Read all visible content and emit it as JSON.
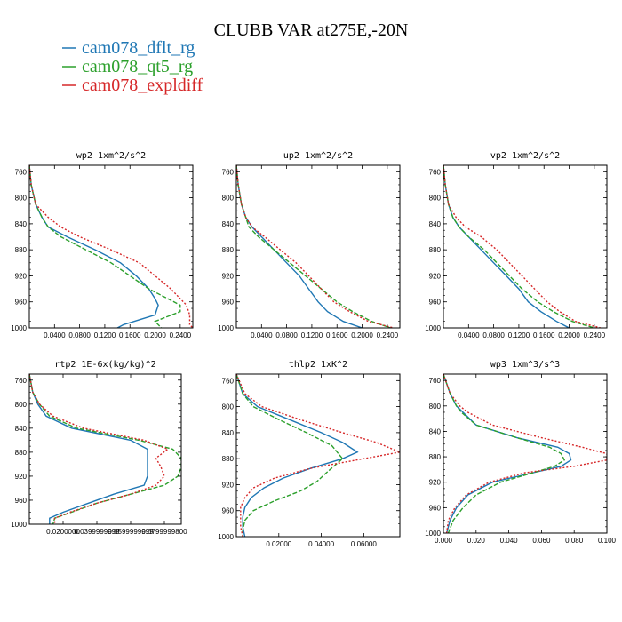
{
  "title": "CLUBB VAR at275E,-20N",
  "legend": [
    {
      "name": "cam078_dflt_rg",
      "color": "#1f77b4",
      "dash": "solid"
    },
    {
      "name": "cam078_qt5_rg",
      "color": "#2ca02c",
      "dash": "dash"
    },
    {
      "name": "cam078_expldiff",
      "color": "#d62728",
      "dash": "dot"
    }
  ],
  "chart_data": [
    {
      "type": "line",
      "title": "wp2  1xm^2/s^2",
      "xlabel": "",
      "ylabel": "",
      "xlim": [
        0,
        0.26
      ],
      "ylim": [
        1000,
        750
      ],
      "ylog": false,
      "xticks": [
        0.04,
        0.08,
        0.12,
        0.16,
        0.2,
        0.24
      ],
      "xtick_labels": [
        "0.0400",
        "0.0800",
        "0.1200",
        "0.1600",
        "0.2000",
        "0.2400"
      ],
      "yticks": [
        760,
        800,
        840,
        880,
        920,
        960,
        1000
      ],
      "series": [
        {
          "name": "cam078_dflt_rg",
          "y": [
            750,
            780,
            810,
            830,
            845,
            860,
            880,
            900,
            920,
            940,
            955,
            965,
            980,
            995,
            1000
          ],
          "x": [
            0.0,
            0.003,
            0.01,
            0.02,
            0.03,
            0.06,
            0.105,
            0.145,
            0.17,
            0.19,
            0.2,
            0.205,
            0.2,
            0.15,
            0.14
          ]
        },
        {
          "name": "cam078_qt5_rg",
          "y": [
            750,
            780,
            810,
            830,
            845,
            860,
            880,
            900,
            920,
            940,
            955,
            965,
            975,
            990,
            1000
          ],
          "x": [
            0.0,
            0.003,
            0.01,
            0.02,
            0.03,
            0.05,
            0.09,
            0.13,
            0.16,
            0.19,
            0.22,
            0.24,
            0.24,
            0.2,
            0.21
          ]
        },
        {
          "name": "cam078_expldiff",
          "y": [
            750,
            780,
            810,
            830,
            845,
            860,
            880,
            900,
            920,
            940,
            955,
            965,
            980,
            995,
            1000
          ],
          "x": [
            0.0,
            0.003,
            0.01,
            0.03,
            0.05,
            0.08,
            0.13,
            0.175,
            0.2,
            0.225,
            0.24,
            0.25,
            0.255,
            0.255,
            0.26
          ]
        }
      ]
    },
    {
      "type": "line",
      "title": "up2  1xm^2/s^2",
      "xlabel": "",
      "ylabel": "",
      "xlim": [
        0,
        0.26
      ],
      "ylim": [
        1000,
        750
      ],
      "ylog": false,
      "xticks": [
        0.04,
        0.08,
        0.12,
        0.16,
        0.2,
        0.24
      ],
      "xtick_labels": [
        "0.0400",
        "0.0800",
        "0.1200",
        "0.1600",
        "0.2000",
        "0.2400"
      ],
      "yticks": [
        760,
        800,
        840,
        880,
        920,
        960,
        1000
      ],
      "series": [
        {
          "name": "cam078_dflt_rg",
          "y": [
            750,
            780,
            810,
            830,
            845,
            860,
            880,
            900,
            920,
            940,
            960,
            975,
            990,
            1000
          ],
          "x": [
            0.0,
            0.003,
            0.008,
            0.015,
            0.025,
            0.04,
            0.06,
            0.08,
            0.1,
            0.115,
            0.13,
            0.145,
            0.17,
            0.2
          ]
        },
        {
          "name": "cam078_qt5_rg",
          "y": [
            750,
            780,
            810,
            830,
            845,
            860,
            880,
            900,
            920,
            940,
            960,
            975,
            990,
            1000
          ],
          "x": [
            0.0,
            0.003,
            0.008,
            0.015,
            0.02,
            0.035,
            0.06,
            0.085,
            0.11,
            0.135,
            0.16,
            0.185,
            0.215,
            0.245
          ]
        },
        {
          "name": "cam078_expldiff",
          "y": [
            750,
            780,
            810,
            830,
            845,
            860,
            880,
            900,
            920,
            940,
            960,
            975,
            990,
            1000
          ],
          "x": [
            0.0,
            0.003,
            0.008,
            0.015,
            0.025,
            0.045,
            0.07,
            0.095,
            0.115,
            0.135,
            0.155,
            0.18,
            0.21,
            0.25
          ]
        }
      ]
    },
    {
      "type": "line",
      "title": "vp2  1xm^2/s^2",
      "xlabel": "",
      "ylabel": "",
      "xlim": [
        0,
        0.26
      ],
      "ylim": [
        1000,
        750
      ],
      "ylog": false,
      "xticks": [
        0.04,
        0.08,
        0.12,
        0.16,
        0.2,
        0.24
      ],
      "xtick_labels": [
        "0.0400",
        "0.0800",
        "0.1200",
        "0.1600",
        "0.2000",
        "0.2400"
      ],
      "yticks": [
        760,
        800,
        840,
        880,
        920,
        960,
        1000
      ],
      "series": [
        {
          "name": "cam078_dflt_rg",
          "y": [
            750,
            780,
            810,
            830,
            845,
            860,
            880,
            900,
            920,
            940,
            960,
            975,
            990,
            1000
          ],
          "x": [
            0.0,
            0.003,
            0.008,
            0.015,
            0.025,
            0.04,
            0.06,
            0.08,
            0.1,
            0.12,
            0.135,
            0.155,
            0.18,
            0.2
          ]
        },
        {
          "name": "cam078_qt5_rg",
          "y": [
            750,
            780,
            810,
            830,
            845,
            860,
            880,
            900,
            920,
            940,
            960,
            975,
            990,
            1000
          ],
          "x": [
            0.0,
            0.003,
            0.008,
            0.015,
            0.025,
            0.04,
            0.065,
            0.085,
            0.105,
            0.125,
            0.15,
            0.175,
            0.205,
            0.24
          ]
        },
        {
          "name": "cam078_expldiff",
          "y": [
            750,
            780,
            810,
            830,
            845,
            860,
            880,
            900,
            920,
            940,
            960,
            975,
            990,
            1000
          ],
          "x": [
            0.0,
            0.003,
            0.008,
            0.02,
            0.035,
            0.06,
            0.085,
            0.105,
            0.125,
            0.145,
            0.165,
            0.185,
            0.21,
            0.25
          ]
        }
      ]
    },
    {
      "type": "line",
      "title": "rtp2  1E-6x(kg/kg)^2",
      "xlabel": "",
      "ylabel": "",
      "xlim": [
        0,
        9e-05
      ],
      "ylim": [
        1000,
        750
      ],
      "ylog": false,
      "xticks": [
        2e-05,
        4e-05,
        6e-05,
        8e-05
      ],
      "xtick_labels": [
        "0.0200000",
        "0.0399999999",
        "0.0599999999",
        "0.0799999800"
      ],
      "yticks": [
        760,
        800,
        840,
        880,
        920,
        960,
        1000
      ],
      "series": [
        {
          "name": "cam078_dflt_rg",
          "y": [
            750,
            780,
            800,
            820,
            840,
            860,
            875,
            890,
            905,
            920,
            935,
            950,
            965,
            980,
            990,
            1000
          ],
          "x": [
            0.0,
            2e-06,
            5e-06,
            1e-05,
            2.5e-05,
            6e-05,
            7e-05,
            7e-05,
            7e-05,
            7e-05,
            6.8e-05,
            5e-05,
            3.5e-05,
            2e-05,
            1.2e-05,
            1.2e-05
          ]
        },
        {
          "name": "cam078_qt5_rg",
          "y": [
            750,
            780,
            800,
            820,
            840,
            860,
            875,
            890,
            905,
            920,
            935,
            950,
            965,
            980,
            990,
            1000
          ],
          "x": [
            0.0,
            2e-06,
            6e-06,
            1.2e-05,
            2.8e-05,
            6.5e-05,
            8.5e-05,
            9e-05,
            9e-05,
            8.8e-05,
            8e-05,
            6e-05,
            4e-05,
            2.5e-05,
            1.5e-05,
            1.4e-05
          ]
        },
        {
          "name": "cam078_expldiff",
          "y": [
            750,
            780,
            800,
            820,
            840,
            860,
            875,
            890,
            905,
            920,
            935,
            950,
            965,
            980,
            990,
            1000
          ],
          "x": [
            0.0,
            2e-06,
            6e-06,
            1.4e-05,
            3.2e-05,
            6.8e-05,
            8.2e-05,
            7.5e-05,
            7.8e-05,
            8e-05,
            7.5e-05,
            6e-05,
            4e-05,
            2.4e-05,
            1.5e-05,
            1.5e-05
          ]
        }
      ]
    },
    {
      "type": "line",
      "title": "thlp2  1xK^2",
      "xlabel": "",
      "ylabel": "",
      "xlim": [
        0,
        0.077
      ],
      "ylim": [
        1000,
        750
      ],
      "ylog": false,
      "xticks": [
        0.02,
        0.04,
        0.06
      ],
      "xtick_labels": [
        "0.02000",
        "0.04000",
        "0.06000"
      ],
      "yticks": [
        760,
        800,
        840,
        880,
        920,
        960,
        1000
      ],
      "series": [
        {
          "name": "cam078_dflt_rg",
          "y": [
            750,
            780,
            800,
            820,
            840,
            855,
            870,
            880,
            895,
            910,
            925,
            940,
            955,
            970,
            985,
            1000
          ],
          "x": [
            0.0,
            0.003,
            0.01,
            0.025,
            0.04,
            0.05,
            0.057,
            0.05,
            0.035,
            0.022,
            0.013,
            0.007,
            0.004,
            0.003,
            0.003,
            0.004
          ]
        },
        {
          "name": "cam078_qt5_rg",
          "y": [
            750,
            780,
            800,
            820,
            840,
            860,
            880,
            900,
            915,
            930,
            945,
            960,
            975,
            990,
            1000
          ],
          "x": [
            0.0,
            0.003,
            0.008,
            0.02,
            0.033,
            0.045,
            0.05,
            0.043,
            0.038,
            0.03,
            0.018,
            0.008,
            0.004,
            0.003,
            0.003
          ]
        },
        {
          "name": "cam078_expldiff",
          "y": [
            750,
            780,
            800,
            820,
            840,
            855,
            870,
            880,
            895,
            910,
            925,
            940,
            955,
            970,
            985,
            1000
          ],
          "x": [
            0.0,
            0.004,
            0.012,
            0.03,
            0.05,
            0.066,
            0.077,
            0.06,
            0.035,
            0.018,
            0.008,
            0.004,
            0.002,
            0.002,
            0.002,
            0.003
          ]
        }
      ]
    },
    {
      "type": "line",
      "title": "wp3  1xm^3/s^3",
      "xlabel": "",
      "ylabel": "",
      "xlim": [
        0,
        0.1
      ],
      "ylim": [
        1000,
        750
      ],
      "ylog": false,
      "xticks": [
        0.0,
        0.02,
        0.04,
        0.06,
        0.08,
        0.1
      ],
      "xtick_labels": [
        "0.000",
        "0.020",
        "0.040",
        "0.060",
        "0.080",
        "0.100"
      ],
      "yticks": [
        760,
        800,
        840,
        880,
        920,
        960,
        1000
      ],
      "series": [
        {
          "name": "cam078_dflt_rg",
          "y": [
            750,
            780,
            800,
            810,
            830,
            850,
            865,
            875,
            885,
            895,
            905,
            920,
            940,
            960,
            980,
            1000
          ],
          "x": [
            0.0,
            0.004,
            0.008,
            0.012,
            0.02,
            0.045,
            0.07,
            0.077,
            0.078,
            0.072,
            0.055,
            0.03,
            0.015,
            0.008,
            0.004,
            0.002
          ]
        },
        {
          "name": "cam078_qt5_rg",
          "y": [
            750,
            780,
            800,
            810,
            830,
            850,
            865,
            875,
            885,
            895,
            905,
            920,
            940,
            960,
            980,
            1000
          ],
          "x": [
            0.0,
            0.004,
            0.008,
            0.011,
            0.02,
            0.045,
            0.065,
            0.072,
            0.074,
            0.068,
            0.055,
            0.035,
            0.02,
            0.012,
            0.006,
            0.003
          ]
        },
        {
          "name": "cam078_expldiff",
          "y": [
            750,
            780,
            800,
            810,
            830,
            850,
            865,
            875,
            885,
            895,
            905,
            920,
            940,
            960,
            980,
            1000
          ],
          "x": [
            0.0,
            0.004,
            0.01,
            0.015,
            0.03,
            0.06,
            0.085,
            0.1,
            0.1,
            0.08,
            0.05,
            0.028,
            0.014,
            0.007,
            0.003,
            0.002
          ]
        }
      ]
    }
  ]
}
